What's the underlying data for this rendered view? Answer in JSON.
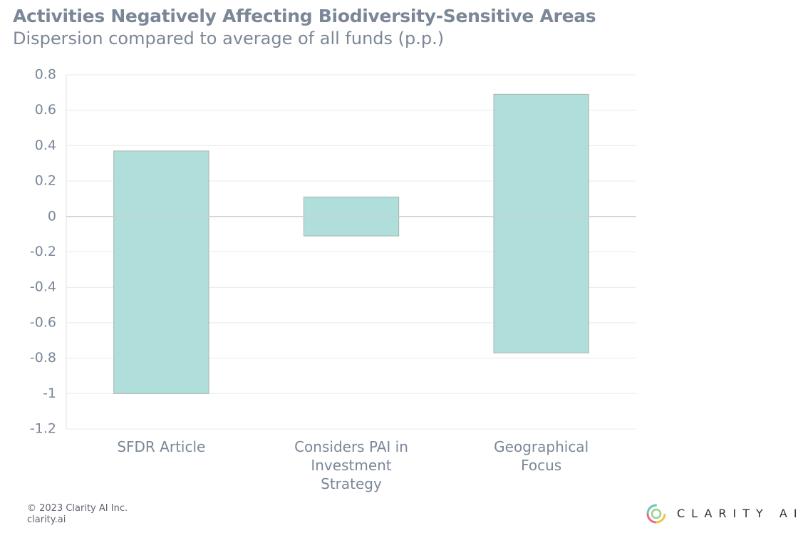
{
  "chart_data": {
    "type": "range_bar",
    "title": "Activities Negatively Affecting Biodiversity-Sensitive Areas",
    "subtitle": "Dispersion compared to average of all funds (p.p.)",
    "categories": [
      "SFDR Article",
      "Considers PAI in Investment Strategy",
      "Geographical Focus"
    ],
    "low": [
      -1,
      -0.11,
      -0.77
    ],
    "high": [
      0.37,
      0.11,
      0.69
    ],
    "color": "#b0dfdb",
    "ylim": [
      -1.2,
      0.8
    ],
    "yticks": [
      0.8,
      0.6,
      0.4,
      0.2,
      0,
      -0.2,
      -0.4,
      -0.6,
      -0.8,
      -1,
      -1.2
    ],
    "grid": true
  },
  "footer": {
    "copyright": "© 2023 Clarity AI Inc.",
    "url": "clarity.ai",
    "logo": "CLARITY AI"
  }
}
